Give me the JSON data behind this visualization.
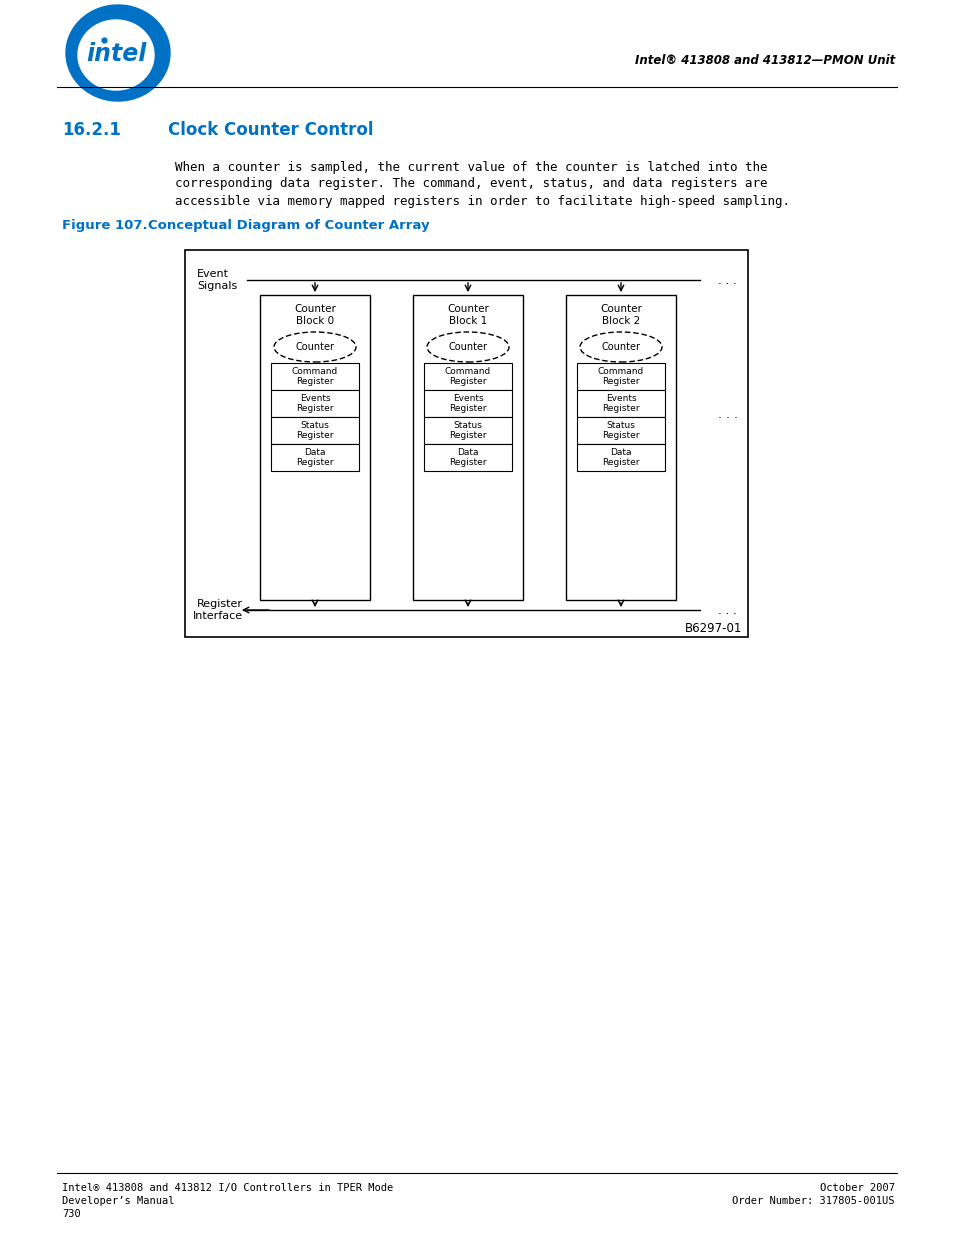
{
  "page_title_header": "Intel® 413808 and 413812—PMON Unit",
  "section_number": "16.2.1",
  "section_title": "Clock Counter Control",
  "body_text_line1": "When a counter is sampled, the current value of the counter is latched into the",
  "body_text_line2": "corresponding data register. The command, event, status, and data registers are",
  "body_text_line3": "accessible via memory mapped registers in order to facilitate high-speed sampling.",
  "figure_label": "Figure 107.",
  "figure_title": "Conceptual Diagram of Counter Array",
  "diagram_code": "B6297-01",
  "footer_left_line1": "Intel® 413808 and 413812 I/O Controllers in TPER Mode",
  "footer_left_line2": "Developer’s Manual",
  "footer_left_line3": "730",
  "footer_right_line1": "October 2007",
  "footer_right_line2": "Order Number: 317805-001US",
  "intel_blue": "#0071c5",
  "bg_color": "#ffffff",
  "block_titles": [
    "Counter\nBlock 0",
    "Counter\nBlock 1",
    "Counter\nBlock 2"
  ],
  "register_labels": [
    "Command\nRegister",
    "Events\nRegister",
    "Status\nRegister",
    "Data\nRegister"
  ],
  "event_signals_label": "Event\nSignals",
  "register_interface_label": "Register\nInterface"
}
